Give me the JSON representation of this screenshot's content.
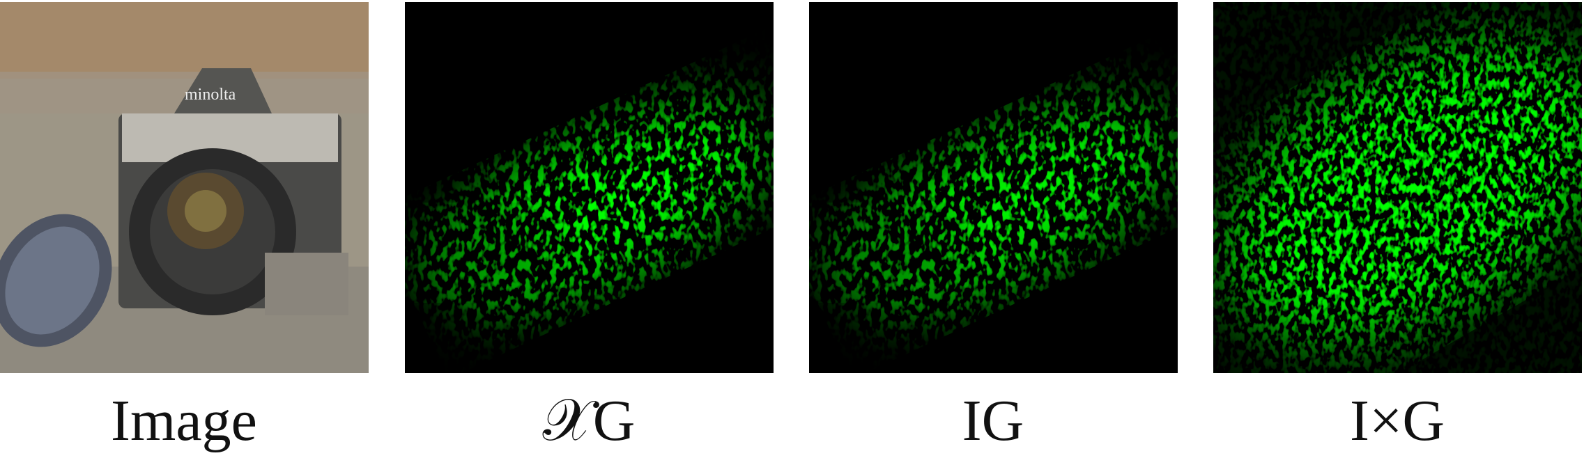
{
  "panels": [
    {
      "label": "Image"
    },
    {
      "label": "𝒳G"
    },
    {
      "label": "IG"
    },
    {
      "label": "I×G"
    }
  ]
}
